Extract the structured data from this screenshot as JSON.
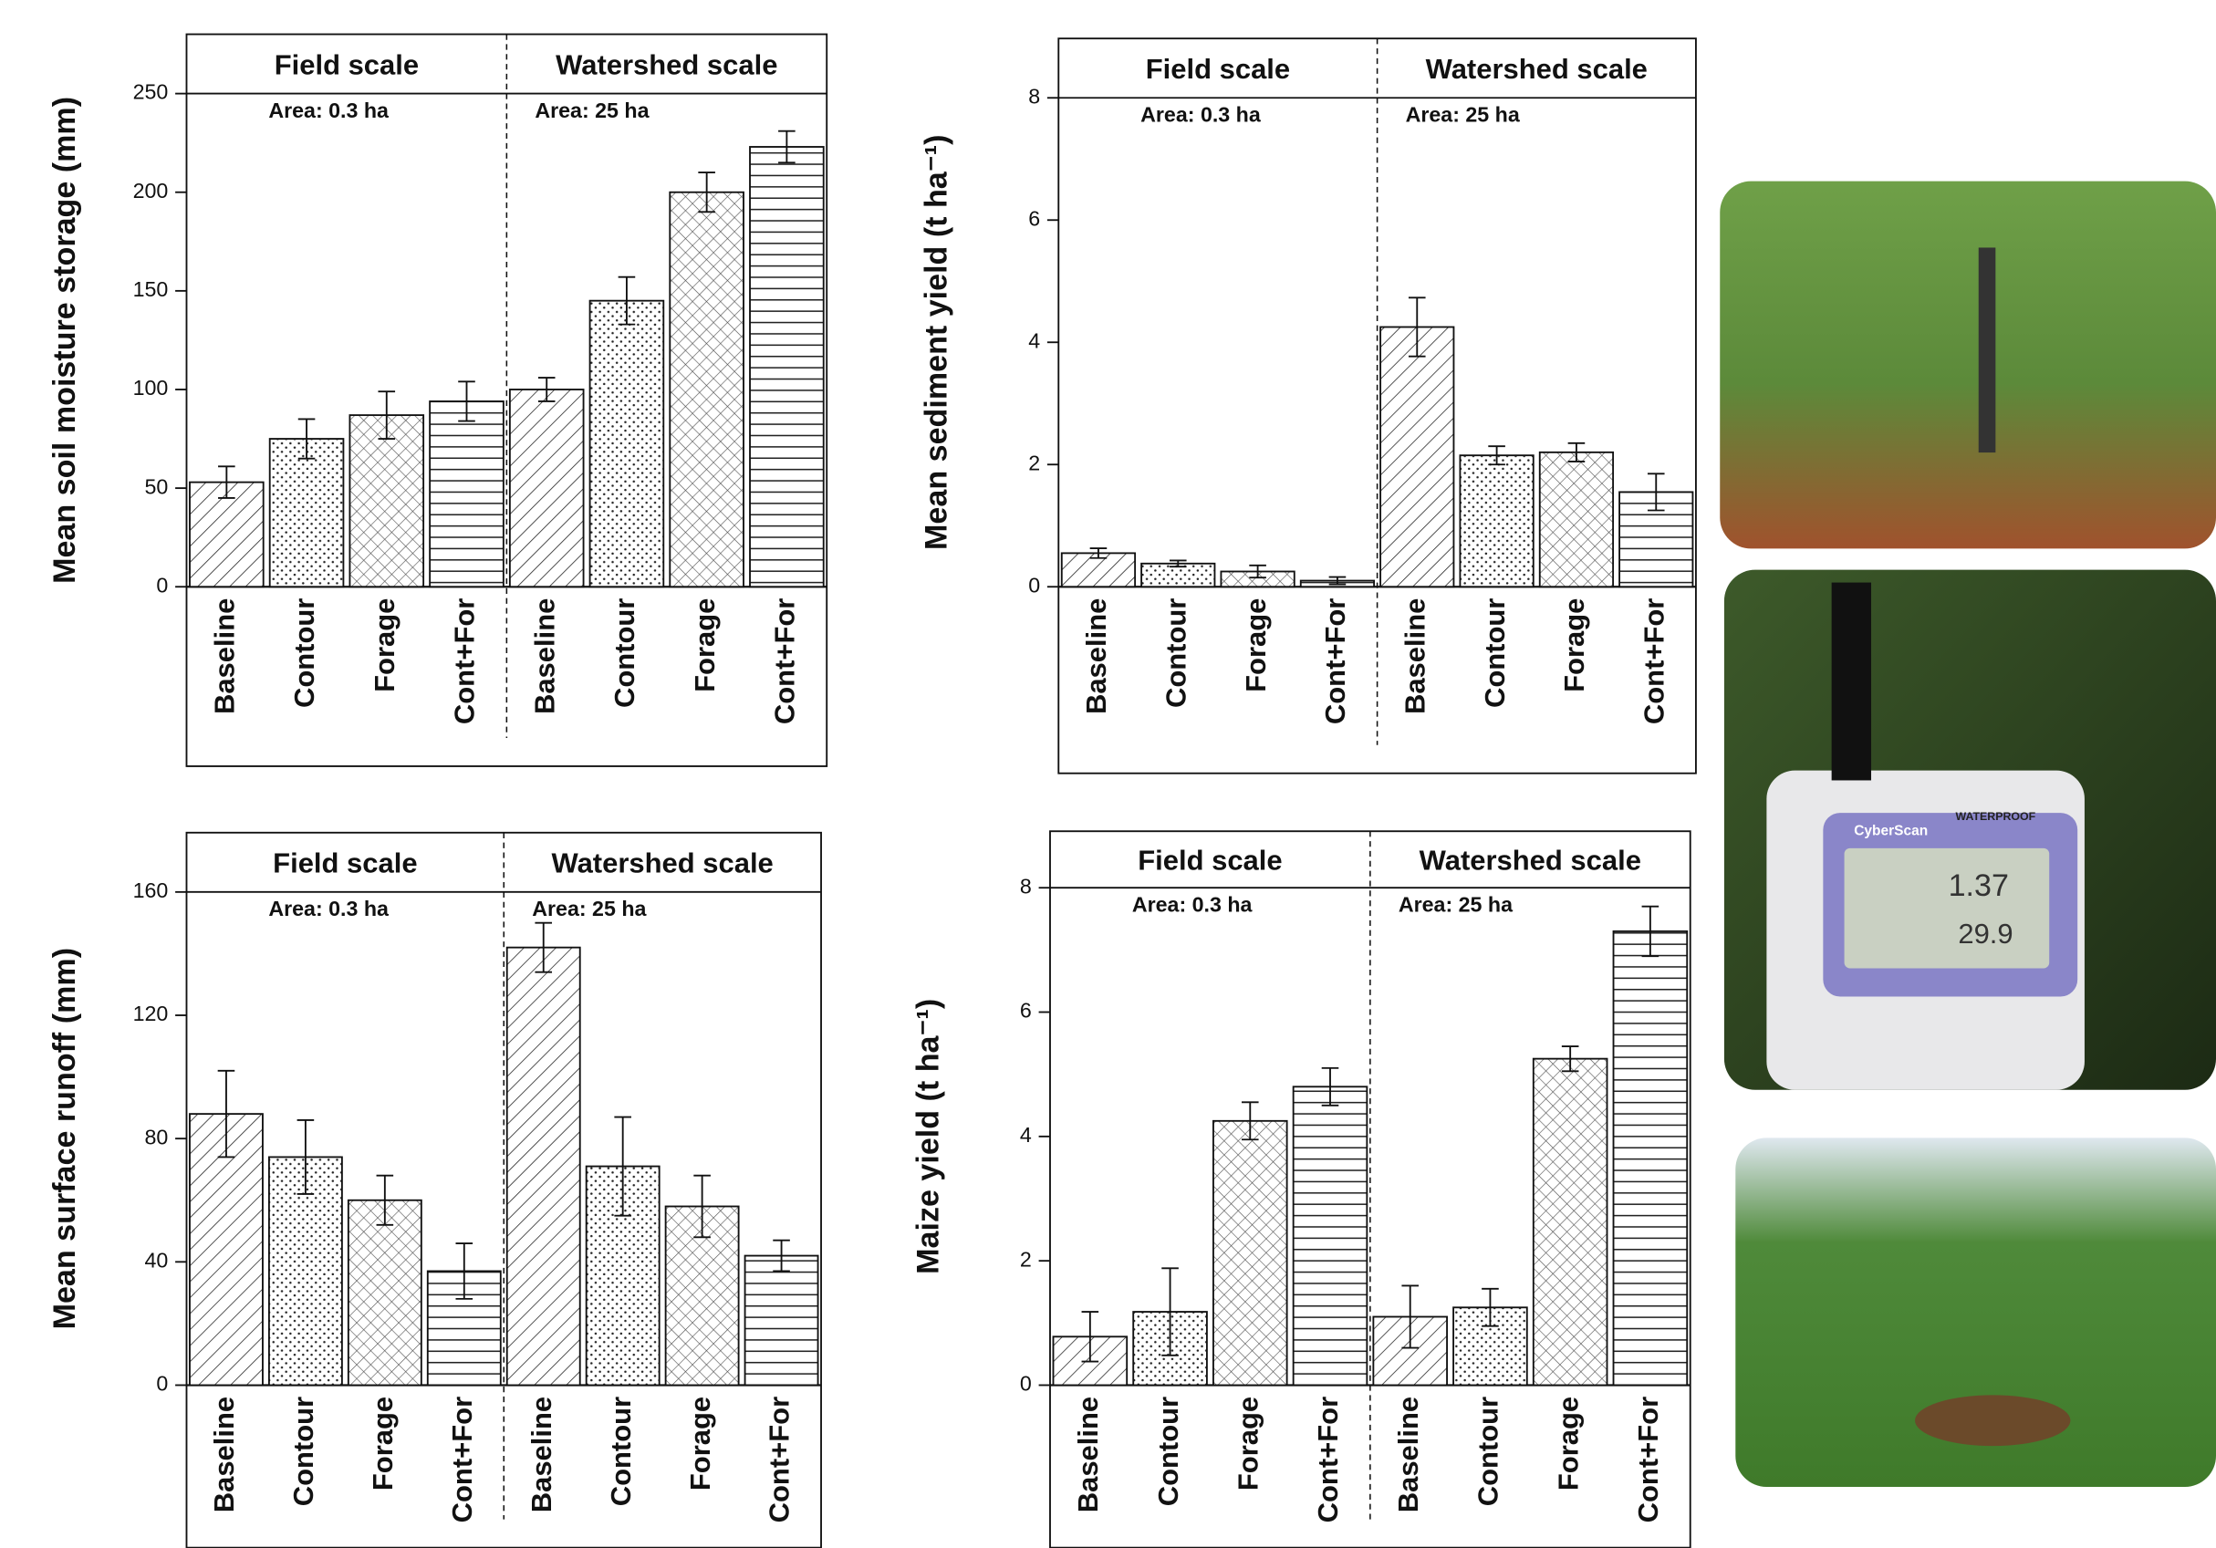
{
  "chart_data": [
    {
      "type": "bar",
      "ylabel": "Mean soil moisture storage (mm)",
      "groups": [
        "Field scale",
        "Watershed scale"
      ],
      "areas": [
        "Area: 0.3 ha",
        "Area: 25 ha"
      ],
      "categories": [
        "Baseline",
        "Contour",
        "Forage",
        "Cont+For",
        "Baseline",
        "Contour",
        "Forage",
        "Cont+For"
      ],
      "values": [
        53,
        75,
        87,
        94,
        100,
        145,
        200,
        223
      ],
      "errors": [
        8,
        10,
        12,
        10,
        6,
        12,
        10,
        8
      ],
      "ylim": [
        0,
        250
      ],
      "yticks": [
        0,
        50,
        100,
        150,
        200,
        250
      ]
    },
    {
      "type": "bar",
      "ylabel": "Mean sediment yield (t ha⁻¹)",
      "groups": [
        "Field scale",
        "Watershed scale"
      ],
      "areas": [
        "Area: 0.3 ha",
        "Area: 25 ha"
      ],
      "categories": [
        "Baseline",
        "Contour",
        "Forage",
        "Cont+For",
        "Baseline",
        "Contour",
        "Forage",
        "Cont+For"
      ],
      "values": [
        0.55,
        0.38,
        0.25,
        0.1,
        4.25,
        2.15,
        2.2,
        1.55
      ],
      "errors": [
        0.08,
        0.05,
        0.1,
        0.06,
        0.48,
        0.15,
        0.15,
        0.3
      ],
      "ylim": [
        0,
        8
      ],
      "yticks": [
        0,
        2,
        4,
        6,
        8
      ]
    },
    {
      "type": "bar",
      "ylabel": "Mean surface runoff (mm)",
      "groups": [
        "Field scale",
        "Watershed scale"
      ],
      "areas": [
        "Area: 0.3 ha",
        "Area: 25 ha"
      ],
      "categories": [
        "Baseline",
        "Contour",
        "Forage",
        "Cont+For",
        "Baseline",
        "Contour",
        "Forage",
        "Cont+For"
      ],
      "values": [
        88,
        74,
        60,
        37,
        142,
        71,
        58,
        42
      ],
      "errors": [
        14,
        12,
        8,
        9,
        8,
        16,
        10,
        5
      ],
      "ylim": [
        0,
        160
      ],
      "yticks": [
        0,
        40,
        80,
        120,
        160
      ]
    },
    {
      "type": "bar",
      "ylabel": "Maize yield (t ha⁻¹)",
      "groups": [
        "Field scale",
        "Watershed scale"
      ],
      "areas": [
        "Area: 0.3 ha",
        "Area: 25 ha"
      ],
      "categories": [
        "Baseline",
        "Contour",
        "Forage",
        "Cont+For",
        "Baseline",
        "Contour",
        "Forage",
        "Cont+For"
      ],
      "values": [
        0.78,
        1.18,
        4.25,
        4.8,
        1.1,
        1.25,
        5.25,
        7.3
      ],
      "errors": [
        0.4,
        0.7,
        0.3,
        0.3,
        0.5,
        0.3,
        0.2,
        0.4
      ],
      "ylim": [
        0,
        8
      ],
      "yticks": [
        0,
        2,
        4,
        6,
        8
      ]
    }
  ],
  "photo_texts": [
    "CyberScan",
    "WATERPROOF",
    "1.37",
    "29.9"
  ]
}
